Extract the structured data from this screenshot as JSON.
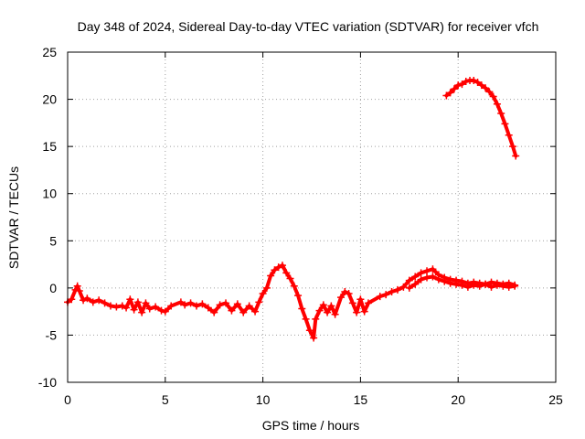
{
  "chart_data": {
    "type": "scatter",
    "title": "Day 348 of 2024, Sidereal Day-to-day VTEC variation (SDTVAR) for receiver vfch",
    "xlabel": "GPS time / hours",
    "ylabel": "SDTVAR / TECUs",
    "xlim": [
      0,
      25
    ],
    "ylim": [
      -10,
      25
    ],
    "xticks": [
      0,
      5,
      10,
      15,
      20,
      25
    ],
    "yticks": [
      -10,
      -5,
      0,
      5,
      10,
      15,
      20,
      25
    ],
    "grid": true,
    "marker": "+",
    "color": "#ff0000",
    "series": [
      {
        "name": "track-main",
        "points": [
          [
            0.0,
            -1.5
          ],
          [
            0.2,
            -1.2
          ],
          [
            0.4,
            -0.2
          ],
          [
            0.5,
            0.2
          ],
          [
            0.6,
            -0.3
          ],
          [
            0.8,
            -1.3
          ],
          [
            1.0,
            -1.1
          ],
          [
            1.3,
            -1.5
          ],
          [
            1.6,
            -1.3
          ],
          [
            1.9,
            -1.6
          ],
          [
            2.2,
            -1.9
          ],
          [
            2.5,
            -2.0
          ],
          [
            2.8,
            -1.9
          ],
          [
            3.0,
            -2.1
          ],
          [
            3.2,
            -1.2
          ],
          [
            3.4,
            -2.3
          ],
          [
            3.6,
            -1.5
          ],
          [
            3.8,
            -2.6
          ],
          [
            4.0,
            -1.6
          ],
          [
            4.2,
            -2.2
          ],
          [
            4.5,
            -2.0
          ],
          [
            4.8,
            -2.4
          ],
          [
            5.0,
            -2.5
          ],
          [
            5.3,
            -1.9
          ],
          [
            5.8,
            -1.5
          ],
          [
            6.0,
            -1.8
          ],
          [
            6.3,
            -1.6
          ],
          [
            6.6,
            -1.9
          ],
          [
            6.9,
            -1.7
          ],
          [
            7.2,
            -2.1
          ],
          [
            7.5,
            -2.6
          ],
          [
            7.8,
            -1.8
          ],
          [
            8.1,
            -1.6
          ],
          [
            8.4,
            -2.4
          ],
          [
            8.7,
            -1.7
          ],
          [
            9.0,
            -2.6
          ],
          [
            9.3,
            -1.9
          ],
          [
            9.6,
            -2.5
          ],
          [
            9.8,
            -1.5
          ],
          [
            10.0,
            -0.6
          ],
          [
            10.2,
            0.0
          ],
          [
            10.4,
            1.3
          ],
          [
            10.6,
            1.9
          ],
          [
            10.8,
            2.2
          ],
          [
            11.0,
            2.4
          ],
          [
            11.2,
            1.6
          ],
          [
            11.4,
            1.0
          ],
          [
            11.6,
            0.2
          ],
          [
            11.8,
            -0.8
          ],
          [
            12.0,
            -2.2
          ],
          [
            12.2,
            -3.3
          ],
          [
            12.4,
            -4.5
          ],
          [
            12.6,
            -5.3
          ],
          [
            12.7,
            -3.3
          ],
          [
            12.9,
            -2.4
          ],
          [
            13.1,
            -1.8
          ],
          [
            13.3,
            -2.6
          ],
          [
            13.5,
            -1.9
          ],
          [
            13.7,
            -2.8
          ],
          [
            14.0,
            -1.0
          ],
          [
            14.2,
            -0.4
          ],
          [
            14.4,
            -0.6
          ],
          [
            14.6,
            -1.6
          ],
          [
            14.8,
            -2.6
          ],
          [
            15.0,
            -1.2
          ],
          [
            15.2,
            -2.5
          ],
          [
            15.4,
            -1.6
          ],
          [
            16.0,
            -0.9
          ],
          [
            16.3,
            -0.7
          ],
          [
            16.6,
            -0.4
          ],
          [
            16.9,
            -0.2
          ],
          [
            17.2,
            0.1
          ],
          [
            17.5,
            0.8
          ],
          [
            17.8,
            1.2
          ],
          [
            18.1,
            1.6
          ],
          [
            18.4,
            1.8
          ],
          [
            18.7,
            2.0
          ],
          [
            19.0,
            1.4
          ],
          [
            19.3,
            1.1
          ],
          [
            19.6,
            0.9
          ],
          [
            19.9,
            0.8
          ],
          [
            20.2,
            0.7
          ],
          [
            20.5,
            0.5
          ],
          [
            20.8,
            0.6
          ],
          [
            21.1,
            0.5
          ],
          [
            21.4,
            0.4
          ],
          [
            21.7,
            0.6
          ],
          [
            22.0,
            0.5
          ],
          [
            22.3,
            0.4
          ],
          [
            22.6,
            0.5
          ],
          [
            22.9,
            0.3
          ]
        ]
      },
      {
        "name": "track-lower",
        "points": [
          [
            17.5,
            0.0
          ],
          [
            17.8,
            0.4
          ],
          [
            18.1,
            0.9
          ],
          [
            18.4,
            1.1
          ],
          [
            18.7,
            1.2
          ],
          [
            19.0,
            0.9
          ],
          [
            19.3,
            0.7
          ],
          [
            19.6,
            0.5
          ],
          [
            19.9,
            0.4
          ],
          [
            20.2,
            0.3
          ],
          [
            20.5,
            0.1
          ],
          [
            20.8,
            0.3
          ],
          [
            21.1,
            0.2
          ],
          [
            21.4,
            0.4
          ],
          [
            21.7,
            0.1
          ],
          [
            22.0,
            0.3
          ],
          [
            22.3,
            0.2
          ],
          [
            22.6,
            0.1
          ],
          [
            22.9,
            0.2
          ]
        ]
      },
      {
        "name": "track-high",
        "points": [
          [
            19.4,
            20.4
          ],
          [
            19.6,
            20.7
          ],
          [
            19.8,
            21.1
          ],
          [
            20.0,
            21.5
          ],
          [
            20.2,
            21.6
          ],
          [
            20.4,
            21.9
          ],
          [
            20.6,
            22.0
          ],
          [
            20.8,
            22.0
          ],
          [
            21.0,
            21.8
          ],
          [
            21.2,
            21.5
          ],
          [
            21.4,
            21.2
          ],
          [
            21.6,
            20.8
          ],
          [
            21.8,
            20.3
          ],
          [
            22.0,
            19.5
          ],
          [
            22.2,
            18.5
          ],
          [
            22.4,
            17.4
          ],
          [
            22.6,
            16.2
          ],
          [
            22.8,
            15.0
          ],
          [
            22.95,
            14.0
          ]
        ]
      }
    ]
  }
}
